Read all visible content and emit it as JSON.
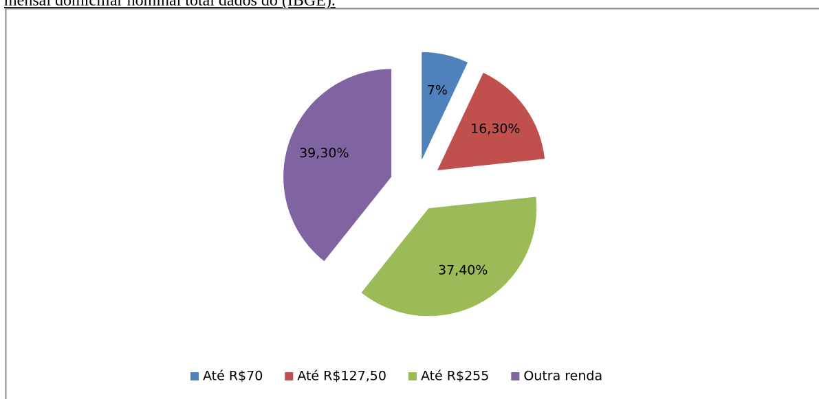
{
  "caption": "mensal domiciliar nominal total dados do (IBGE).",
  "chart_data": {
    "type": "pie",
    "categories": [
      "Até R$70",
      "Até R$127,50",
      "Até R$255",
      "Outra renda"
    ],
    "values": [
      7,
      16.3,
      37.4,
      39.3
    ],
    "value_labels": [
      "7%",
      "16,30%",
      "37,40%",
      "39,30%"
    ],
    "colors": [
      "#4f81bd",
      "#c0504d",
      "#9bbb59",
      "#8064a2"
    ],
    "exploded": true,
    "legend": "bottom"
  }
}
